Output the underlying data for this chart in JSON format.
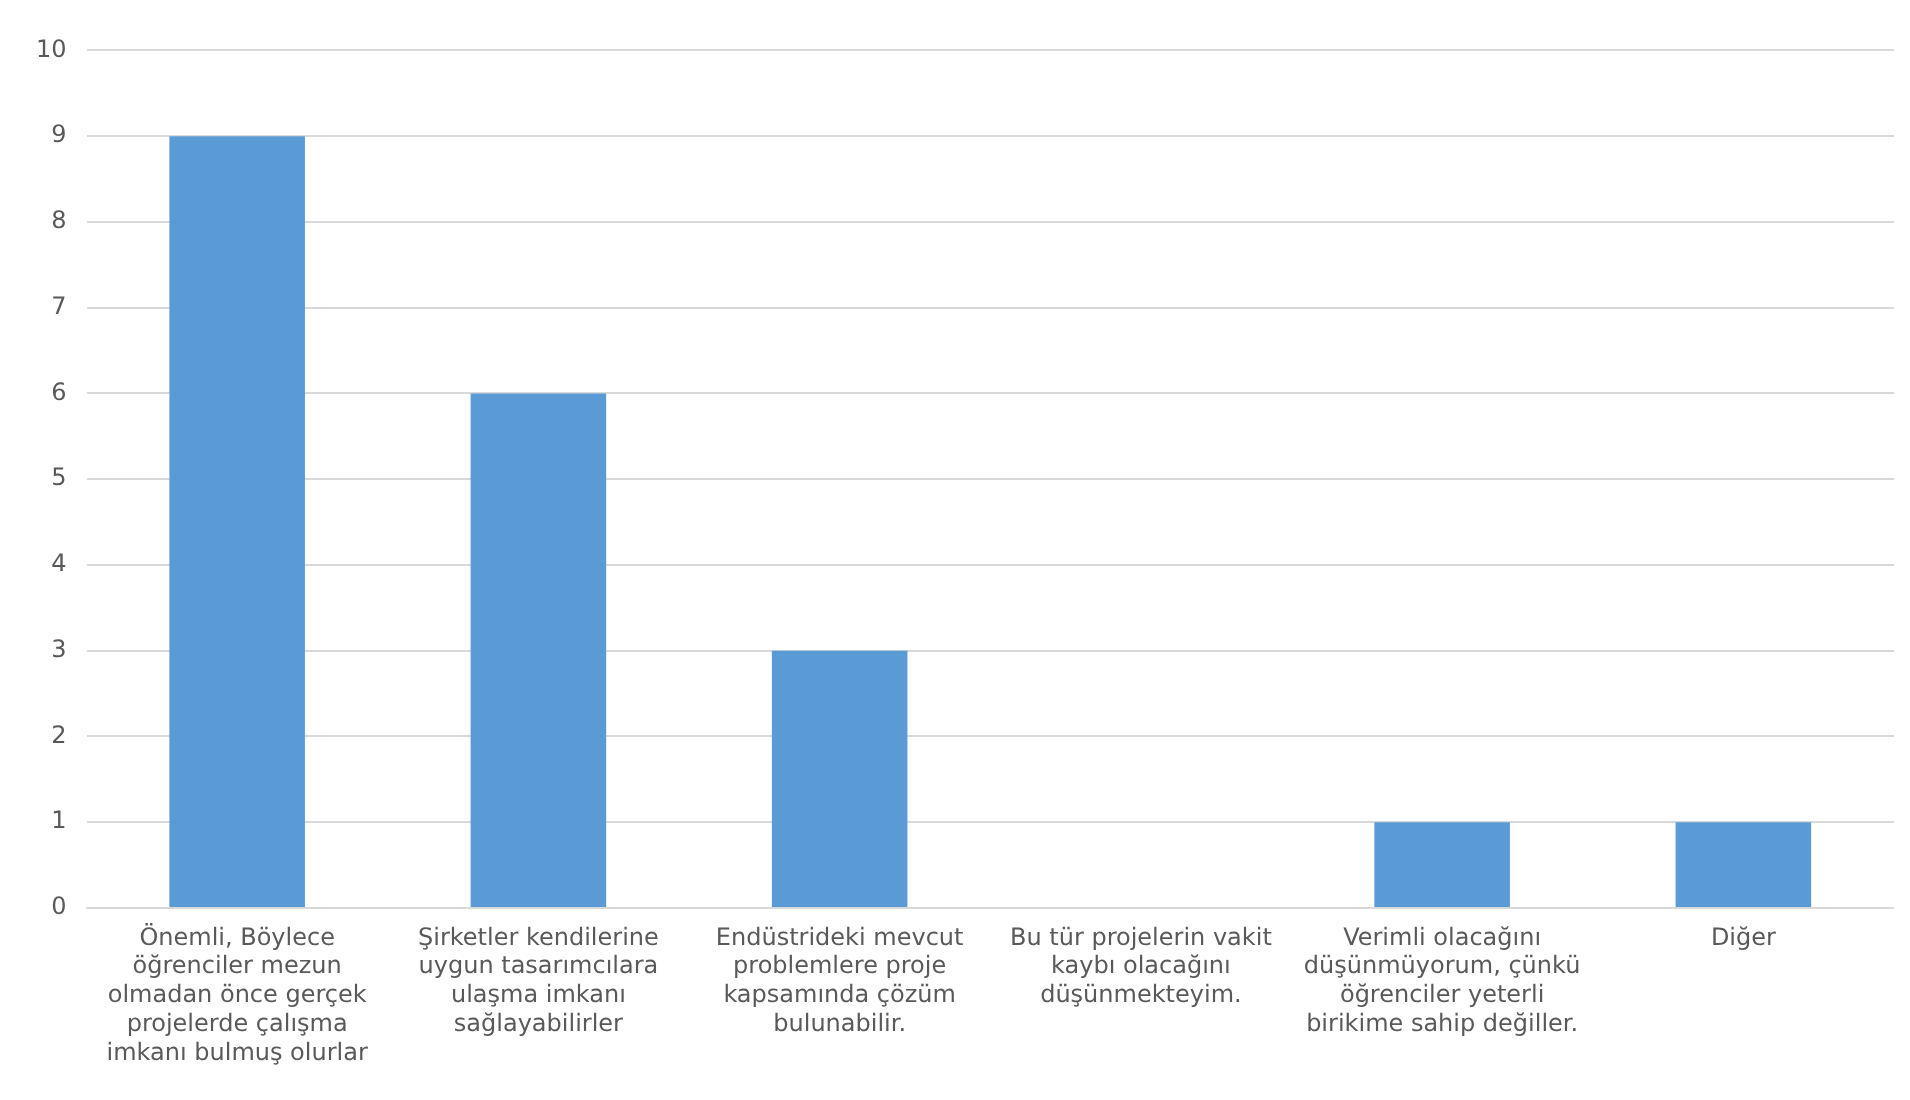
{
  "chart_data": {
    "type": "bar",
    "categories": [
      "Önemli, Böylece öğrenciler mezun olmadan önce gerçek projelerde çalışma imkanı bulmuş olurlar",
      "Şirketler kendilerine uygun tasarımcılara ulaşma imkanı sağlayabilirler",
      "Endüstrideki mevcut problemlere proje kapsamında çözüm bulunabilir.",
      "Bu tür projelerin vakit kaybı olacağını düşünmekteyim.",
      "Verimli olacağını düşünmüyorum, çünkü öğrenciler yeterli birikime sahip değiller.",
      "Diğer"
    ],
    "values": [
      9,
      6,
      3,
      0,
      1,
      1
    ],
    "color": "#5b9bd5",
    "ylim": [
      0,
      10
    ],
    "yticks": [
      0,
      1,
      2,
      3,
      4,
      5,
      6,
      7,
      8,
      9,
      10
    ],
    "grid": "y",
    "legend": false
  }
}
